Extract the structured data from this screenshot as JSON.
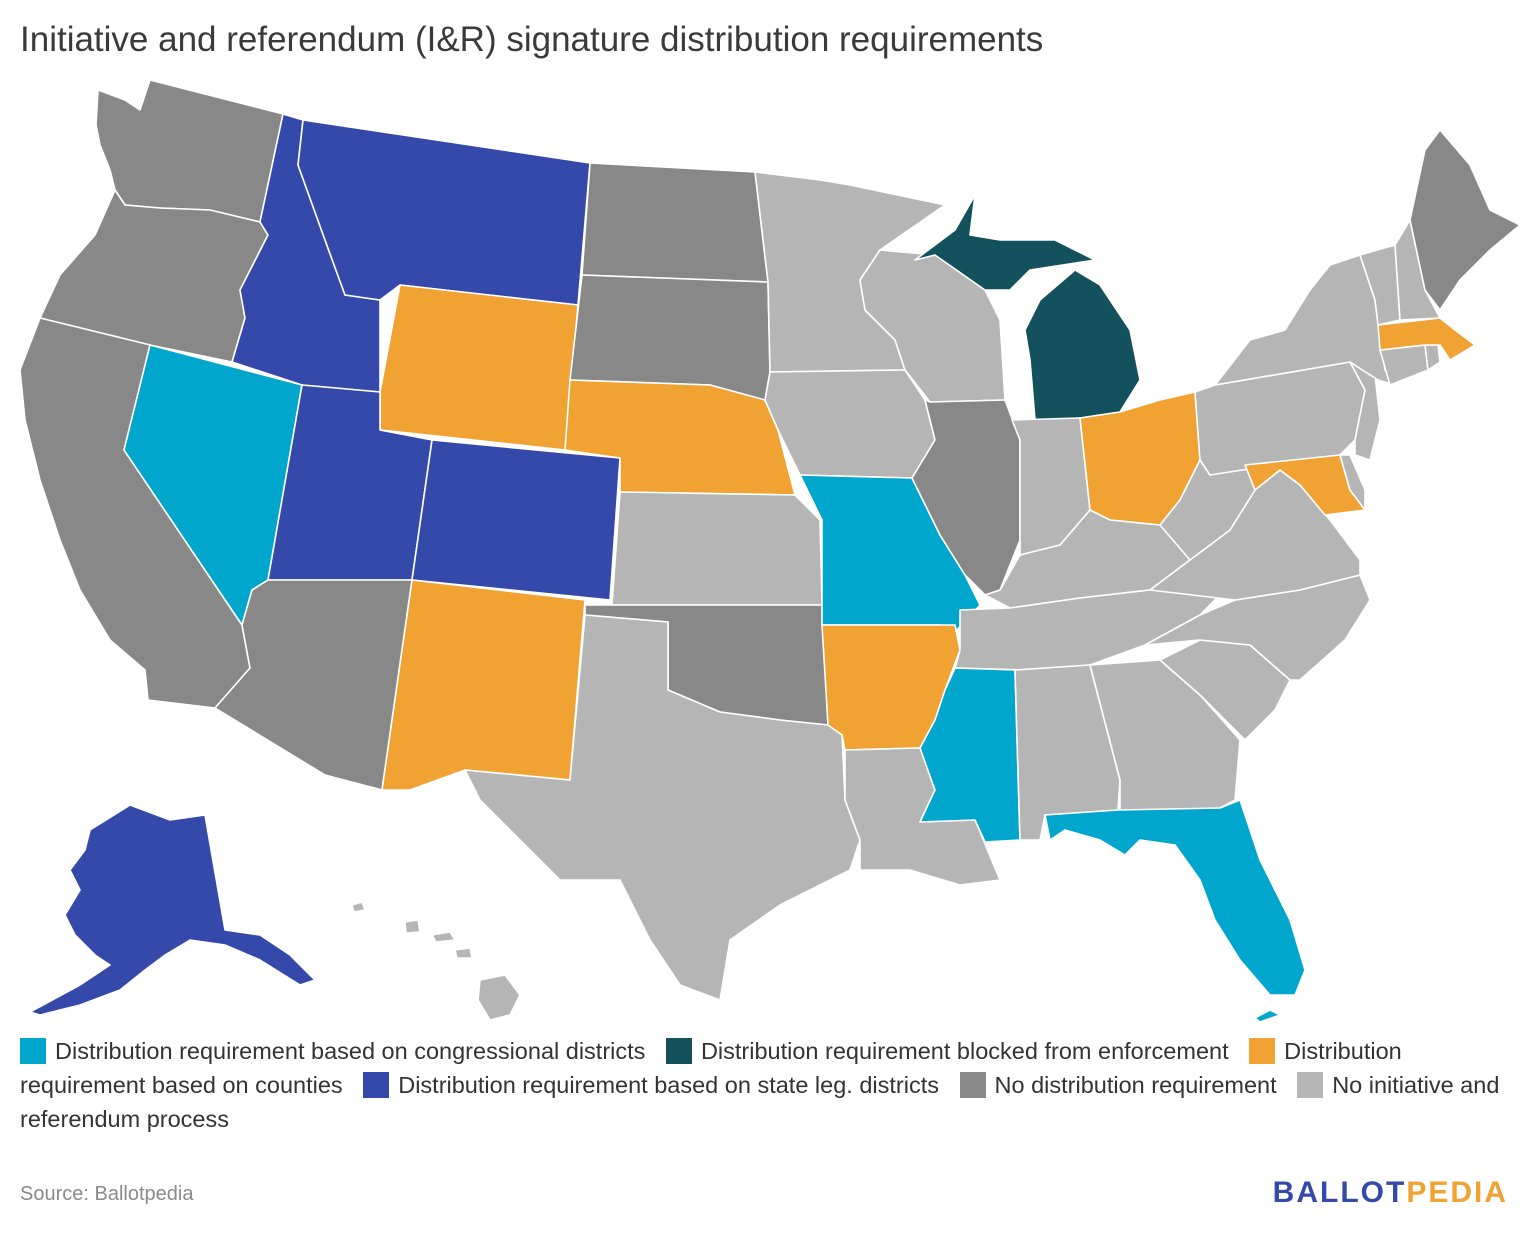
{
  "title": "Initiative and referendum (I&R) signature distribution requirements",
  "colors": {
    "congressional": "#00a6cc",
    "blocked": "#13515d",
    "counties": "#f0a233",
    "state_leg": "#3449a9",
    "none": "#888888",
    "no_process": "#b5b5b5"
  },
  "legend": [
    {
      "key": "congressional",
      "label": "Distribution requirement based on congressional districts"
    },
    {
      "key": "blocked",
      "label": "Distribution requirement blocked from enforcement"
    },
    {
      "key": "counties",
      "label": "Distribution requirement based on counties"
    },
    {
      "key": "state_leg",
      "label": "Distribution requirement based on state leg. districts"
    },
    {
      "key": "none",
      "label": "No distribution requirement"
    },
    {
      "key": "no_process",
      "label": "No initiative and referendum process"
    }
  ],
  "states": {
    "WA": "none",
    "OR": "none",
    "CA": "none",
    "ID": "state_leg",
    "MT": "state_leg",
    "NV": "congressional",
    "UT": "state_leg",
    "AZ": "none",
    "WY": "counties",
    "CO": "state_leg",
    "NM": "counties",
    "ND": "none",
    "SD": "none",
    "NE": "counties",
    "KS": "no_process",
    "OK": "none",
    "TX": "no_process",
    "MN": "no_process",
    "IA": "no_process",
    "MO": "congressional",
    "AR": "counties",
    "LA": "no_process",
    "WI": "no_process",
    "IL": "none",
    "MI": "blocked",
    "IN": "no_process",
    "OH": "counties",
    "KY": "no_process",
    "TN": "no_process",
    "MS": "congressional",
    "AL": "no_process",
    "GA": "no_process",
    "FL": "congressional",
    "SC": "no_process",
    "NC": "no_process",
    "VA": "no_process",
    "WV": "no_process",
    "PA": "no_process",
    "NY": "no_process",
    "VT": "no_process",
    "NH": "no_process",
    "ME": "none",
    "MA": "counties",
    "RI": "no_process",
    "CT": "no_process",
    "NJ": "no_process",
    "DE": "no_process",
    "MD": "counties",
    "AK": "state_leg",
    "HI": "no_process"
  },
  "source": "Source: Ballotpedia",
  "logo": {
    "part1": "BALLOT",
    "part2": "PEDIA",
    "color1": "#3449a9",
    "color2": "#f0a233"
  }
}
